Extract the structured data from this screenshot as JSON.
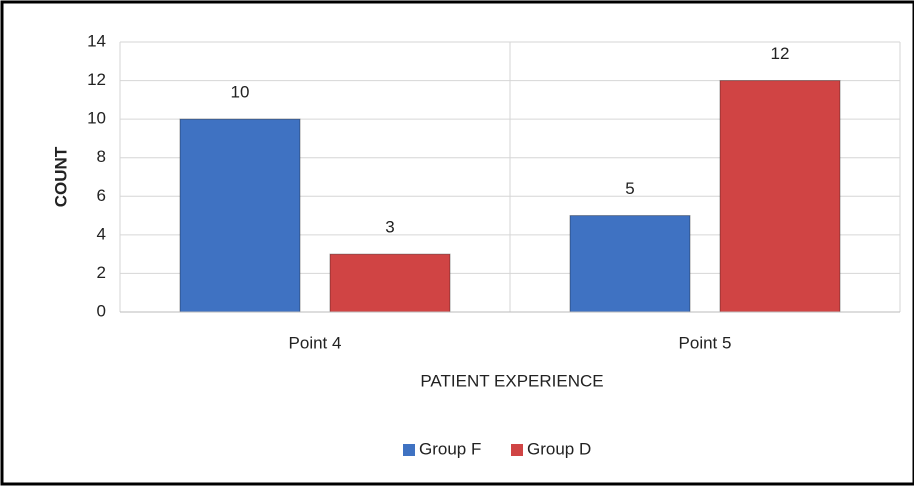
{
  "chart_data": {
    "type": "bar",
    "categories": [
      "Point 4",
      "Point 5"
    ],
    "series": [
      {
        "name": "Group F",
        "color": "#3f72c2",
        "values": [
          10,
          5
        ]
      },
      {
        "name": "Group D",
        "color": "#d04444",
        "values": [
          3,
          12
        ]
      }
    ],
    "xlabel": "PATIENT EXPERIENCE",
    "ylabel": "COUNT",
    "ylim": [
      0,
      14
    ],
    "yticks": [
      0,
      2,
      4,
      6,
      8,
      10,
      12,
      14
    ],
    "grid": true,
    "legend": "bottom"
  }
}
